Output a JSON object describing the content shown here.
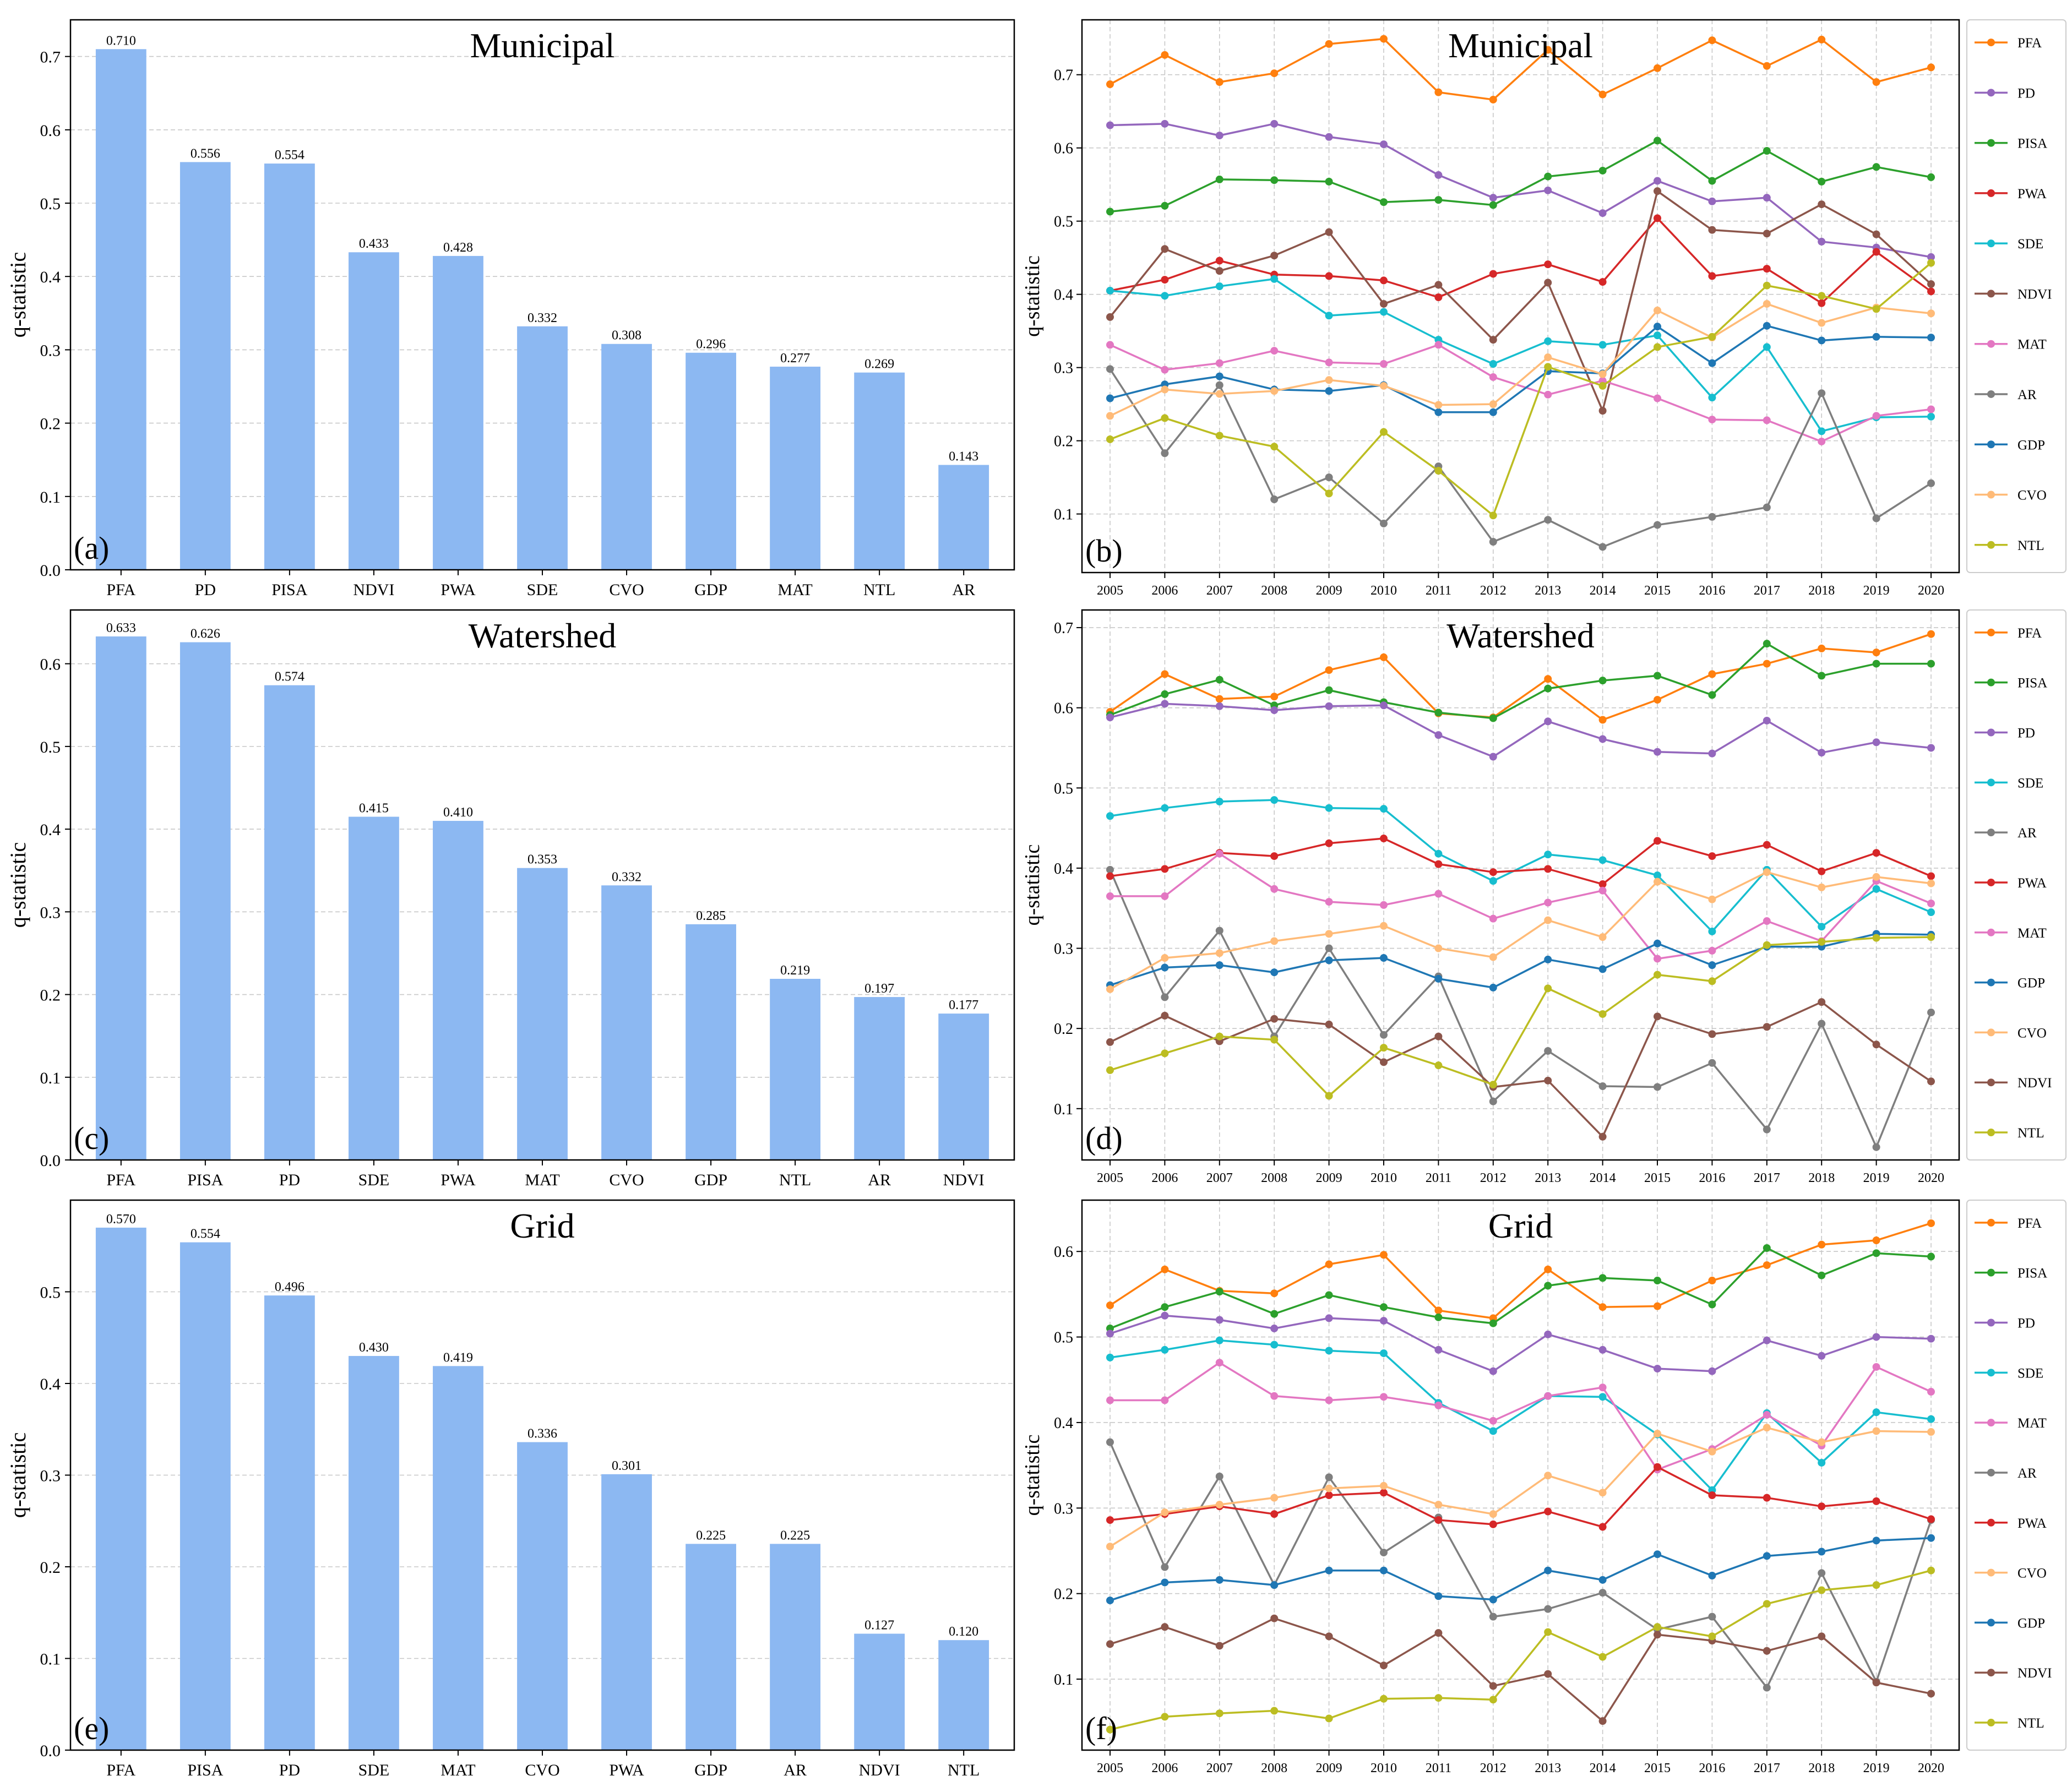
{
  "years": [
    "2005",
    "2006",
    "2007",
    "2008",
    "2009",
    "2010",
    "2011",
    "2012",
    "2013",
    "2014",
    "2015",
    "2016",
    "2017",
    "2018",
    "2019",
    "2020"
  ],
  "colors": {
    "bar": "#8cb8f2",
    "PFA": "#ff7f0e",
    "PD": "#9467bd",
    "PISA": "#2ca02c",
    "PWA": "#d62728",
    "SDE": "#17becf",
    "NDVI": "#8c564b",
    "MAT": "#e377c2",
    "AR": "#7f7f7f",
    "GDP": "#1f77b4",
    "CVO": "#ffbb78",
    "NTL": "#bcbd22"
  },
  "chart_data": [
    {
      "id": "a",
      "type": "bar",
      "title": "Municipal",
      "panel_label": "(a)",
      "ylabel": "q-statistic",
      "ylim": [
        0,
        0.75
      ],
      "yticks": [
        "0.0",
        "0.1",
        "0.2",
        "0.3",
        "0.4",
        "0.5",
        "0.6",
        "0.7"
      ],
      "categories": [
        "PFA",
        "PD",
        "PISA",
        "NDVI",
        "PWA",
        "SDE",
        "CVO",
        "GDP",
        "MAT",
        "NTL",
        "AR"
      ],
      "values": [
        0.71,
        0.556,
        0.554,
        0.433,
        0.428,
        0.332,
        0.308,
        0.296,
        0.277,
        0.269,
        0.143
      ],
      "labels": [
        "0.710",
        "0.556",
        "0.554",
        "0.433",
        "0.428",
        "0.332",
        "0.308",
        "0.296",
        "0.277",
        "0.269",
        "0.143"
      ]
    },
    {
      "id": "b",
      "type": "line",
      "title": "Municipal",
      "panel_label": "(b)",
      "ylabel": "q-statistic",
      "ylim": [
        0.02,
        0.775
      ],
      "yticks": [
        "0.1",
        "0.2",
        "0.3",
        "0.4",
        "0.5",
        "0.6",
        "0.7"
      ],
      "legend": "right",
      "series": [
        {
          "name": "PFA",
          "values": [
            0.687,
            0.727,
            0.69,
            0.702,
            0.742,
            0.749,
            0.676,
            0.666,
            0.734,
            0.673,
            0.709,
            0.747,
            0.712,
            0.748,
            0.69,
            0.71
          ]
        },
        {
          "name": "PD",
          "values": [
            0.631,
            0.633,
            0.617,
            0.633,
            0.615,
            0.605,
            0.563,
            0.532,
            0.542,
            0.511,
            0.555,
            0.527,
            0.532,
            0.472,
            0.464,
            0.451
          ]
        },
        {
          "name": "PISA",
          "values": [
            0.513,
            0.521,
            0.557,
            0.556,
            0.554,
            0.526,
            0.529,
            0.522,
            0.561,
            0.569,
            0.61,
            0.555,
            0.596,
            0.554,
            0.574,
            0.56
          ]
        },
        {
          "name": "PWA",
          "values": [
            0.405,
            0.42,
            0.446,
            0.427,
            0.425,
            0.419,
            0.396,
            0.428,
            0.441,
            0.417,
            0.504,
            0.425,
            0.435,
            0.388,
            0.458,
            0.404
          ]
        },
        {
          "name": "SDE",
          "values": [
            0.405,
            0.398,
            0.411,
            0.421,
            0.371,
            0.376,
            0.338,
            0.305,
            0.336,
            0.331,
            0.344,
            0.259,
            0.328,
            0.213,
            0.232,
            0.233
          ]
        },
        {
          "name": "NDVI",
          "values": [
            0.369,
            0.462,
            0.432,
            0.453,
            0.485,
            0.387,
            0.413,
            0.338,
            0.416,
            0.241,
            0.541,
            0.488,
            0.483,
            0.523,
            0.482,
            0.414
          ]
        },
        {
          "name": "MAT",
          "values": [
            0.331,
            0.297,
            0.306,
            0.323,
            0.307,
            0.305,
            0.331,
            0.287,
            0.263,
            0.282,
            0.258,
            0.229,
            0.228,
            0.199,
            0.234,
            0.243
          ]
        },
        {
          "name": "AR",
          "values": [
            0.298,
            0.183,
            0.276,
            0.12,
            0.15,
            0.087,
            0.165,
            0.062,
            0.092,
            0.055,
            0.085,
            0.096,
            0.109,
            0.265,
            0.094,
            0.142
          ]
        },
        {
          "name": "GDP",
          "values": [
            0.258,
            0.277,
            0.288,
            0.27,
            0.268,
            0.276,
            0.239,
            0.239,
            0.295,
            0.292,
            0.356,
            0.306,
            0.357,
            0.337,
            0.342,
            0.341
          ]
        },
        {
          "name": "CVO",
          "values": [
            0.234,
            0.27,
            0.264,
            0.268,
            0.283,
            0.275,
            0.249,
            0.25,
            0.314,
            0.291,
            0.378,
            0.341,
            0.387,
            0.361,
            0.382,
            0.374
          ]
        },
        {
          "name": "NTL",
          "values": [
            0.202,
            0.231,
            0.207,
            0.192,
            0.128,
            0.212,
            0.159,
            0.098,
            0.301,
            0.275,
            0.328,
            0.342,
            0.412,
            0.398,
            0.38,
            0.443
          ]
        }
      ]
    },
    {
      "id": "c",
      "type": "bar",
      "title": "Watershed",
      "panel_label": "(c)",
      "ylabel": "q-statistic",
      "ylim": [
        0,
        0.665
      ],
      "yticks": [
        "0.0",
        "0.1",
        "0.2",
        "0.3",
        "0.4",
        "0.5",
        "0.6"
      ],
      "categories": [
        "PFA",
        "PISA",
        "PD",
        "SDE",
        "PWA",
        "MAT",
        "CVO",
        "GDP",
        "NTL",
        "AR",
        "NDVI"
      ],
      "values": [
        0.633,
        0.626,
        0.574,
        0.415,
        0.41,
        0.353,
        0.332,
        0.285,
        0.219,
        0.197,
        0.177
      ],
      "labels": [
        "0.633",
        "0.626",
        "0.574",
        "0.415",
        "0.410",
        "0.353",
        "0.332",
        "0.285",
        "0.219",
        "0.197",
        "0.177"
      ]
    },
    {
      "id": "d",
      "type": "line",
      "title": "Watershed",
      "panel_label": "(d)",
      "ylabel": "q-statistic",
      "ylim": [
        0.036,
        0.722
      ],
      "yticks": [
        "0.1",
        "0.2",
        "0.3",
        "0.4",
        "0.5",
        "0.6",
        "0.7"
      ],
      "legend": "right",
      "series": [
        {
          "name": "PFA",
          "values": [
            0.595,
            0.642,
            0.611,
            0.614,
            0.647,
            0.663,
            0.593,
            0.588,
            0.636,
            0.585,
            0.61,
            0.642,
            0.655,
            0.674,
            0.669,
            0.692
          ]
        },
        {
          "name": "PISA",
          "values": [
            0.591,
            0.617,
            0.635,
            0.603,
            0.622,
            0.607,
            0.594,
            0.587,
            0.624,
            0.634,
            0.64,
            0.616,
            0.68,
            0.64,
            0.655,
            0.655
          ]
        },
        {
          "name": "PD",
          "values": [
            0.588,
            0.605,
            0.602,
            0.597,
            0.602,
            0.603,
            0.566,
            0.539,
            0.583,
            0.561,
            0.545,
            0.543,
            0.584,
            0.544,
            0.557,
            0.55
          ]
        },
        {
          "name": "SDE",
          "values": [
            0.465,
            0.475,
            0.483,
            0.485,
            0.475,
            0.474,
            0.418,
            0.384,
            0.417,
            0.41,
            0.391,
            0.321,
            0.398,
            0.327,
            0.374,
            0.345
          ]
        },
        {
          "name": "AR",
          "values": [
            0.398,
            0.239,
            0.322,
            0.19,
            0.3,
            0.192,
            0.265,
            0.109,
            0.172,
            0.128,
            0.127,
            0.157,
            0.074,
            0.206,
            0.052,
            0.22
          ]
        },
        {
          "name": "PWA",
          "values": [
            0.39,
            0.399,
            0.419,
            0.415,
            0.431,
            0.437,
            0.405,
            0.395,
            0.399,
            0.38,
            0.434,
            0.415,
            0.429,
            0.396,
            0.419,
            0.39
          ]
        },
        {
          "name": "MAT",
          "values": [
            0.365,
            0.365,
            0.418,
            0.374,
            0.358,
            0.354,
            0.368,
            0.337,
            0.357,
            0.372,
            0.287,
            0.297,
            0.334,
            0.309,
            0.384,
            0.356
          ]
        },
        {
          "name": "GDP",
          "values": [
            0.254,
            0.276,
            0.279,
            0.27,
            0.285,
            0.288,
            0.262,
            0.251,
            0.286,
            0.274,
            0.306,
            0.279,
            0.302,
            0.302,
            0.318,
            0.317
          ]
        },
        {
          "name": "CVO",
          "values": [
            0.249,
            0.288,
            0.294,
            0.309,
            0.318,
            0.328,
            0.3,
            0.289,
            0.335,
            0.314,
            0.383,
            0.361,
            0.395,
            0.376,
            0.389,
            0.381
          ]
        },
        {
          "name": "NDVI",
          "values": [
            0.183,
            0.216,
            0.184,
            0.212,
            0.205,
            0.158,
            0.19,
            0.127,
            0.135,
            0.065,
            0.215,
            0.193,
            0.202,
            0.233,
            0.18,
            0.134
          ]
        },
        {
          "name": "NTL",
          "values": [
            0.148,
            0.169,
            0.19,
            0.186,
            0.116,
            0.176,
            0.154,
            0.13,
            0.25,
            0.218,
            0.267,
            0.259,
            0.304,
            0.308,
            0.313,
            0.314
          ]
        }
      ]
    },
    {
      "id": "e",
      "type": "bar",
      "title": "Grid",
      "panel_label": "(e)",
      "ylabel": "q-statistic",
      "ylim": [
        0,
        0.6
      ],
      "yticks": [
        "0.0",
        "0.1",
        "0.2",
        "0.3",
        "0.4",
        "0.5"
      ],
      "categories": [
        "PFA",
        "PISA",
        "PD",
        "SDE",
        "MAT",
        "CVO",
        "PWA",
        "GDP",
        "AR",
        "NDVI",
        "NTL"
      ],
      "values": [
        0.57,
        0.554,
        0.496,
        0.43,
        0.419,
        0.336,
        0.301,
        0.225,
        0.225,
        0.127,
        0.12
      ],
      "labels": [
        "0.570",
        "0.554",
        "0.496",
        "0.430",
        "0.419",
        "0.336",
        "0.301",
        "0.225",
        "0.225",
        "0.127",
        "0.120"
      ]
    },
    {
      "id": "f",
      "type": "line",
      "title": "Grid",
      "panel_label": "(f)",
      "ylabel": "q-statistic",
      "ylim": [
        0.017,
        0.66
      ],
      "yticks": [
        "0.1",
        "0.2",
        "0.3",
        "0.4",
        "0.5",
        "0.6"
      ],
      "legend": "right",
      "series": [
        {
          "name": "PFA",
          "values": [
            0.537,
            0.579,
            0.554,
            0.551,
            0.585,
            0.596,
            0.531,
            0.522,
            0.579,
            0.535,
            0.536,
            0.566,
            0.584,
            0.608,
            0.613,
            0.633
          ]
        },
        {
          "name": "PISA",
          "values": [
            0.51,
            0.535,
            0.553,
            0.527,
            0.549,
            0.535,
            0.523,
            0.516,
            0.56,
            0.569,
            0.566,
            0.538,
            0.604,
            0.572,
            0.598,
            0.594
          ]
        },
        {
          "name": "PD",
          "values": [
            0.504,
            0.525,
            0.52,
            0.51,
            0.522,
            0.519,
            0.485,
            0.46,
            0.503,
            0.485,
            0.463,
            0.46,
            0.496,
            0.478,
            0.5,
            0.498
          ]
        },
        {
          "name": "SDE",
          "values": [
            0.476,
            0.485,
            0.496,
            0.491,
            0.484,
            0.481,
            0.423,
            0.39,
            0.431,
            0.43,
            0.386,
            0.321,
            0.411,
            0.353,
            0.412,
            0.404
          ]
        },
        {
          "name": "MAT",
          "values": [
            0.426,
            0.426,
            0.47,
            0.431,
            0.426,
            0.43,
            0.42,
            0.402,
            0.431,
            0.441,
            0.345,
            0.369,
            0.409,
            0.373,
            0.465,
            0.436
          ]
        },
        {
          "name": "AR",
          "values": [
            0.377,
            0.231,
            0.337,
            0.21,
            0.336,
            0.248,
            0.289,
            0.173,
            0.182,
            0.201,
            0.158,
            0.173,
            0.09,
            0.224,
            0.097,
            0.286
          ]
        },
        {
          "name": "PWA",
          "values": [
            0.286,
            0.293,
            0.302,
            0.293,
            0.315,
            0.318,
            0.286,
            0.281,
            0.296,
            0.278,
            0.348,
            0.315,
            0.312,
            0.302,
            0.308,
            0.287
          ]
        },
        {
          "name": "CVO",
          "values": [
            0.255,
            0.295,
            0.304,
            0.312,
            0.323,
            0.326,
            0.304,
            0.293,
            0.338,
            0.318,
            0.387,
            0.366,
            0.394,
            0.377,
            0.39,
            0.389
          ]
        },
        {
          "name": "GDP",
          "values": [
            0.192,
            0.213,
            0.216,
            0.21,
            0.227,
            0.227,
            0.197,
            0.193,
            0.227,
            0.216,
            0.246,
            0.221,
            0.244,
            0.249,
            0.262,
            0.265
          ]
        },
        {
          "name": "NDVI",
          "values": [
            0.141,
            0.161,
            0.139,
            0.171,
            0.15,
            0.116,
            0.154,
            0.092,
            0.106,
            0.051,
            0.152,
            0.145,
            0.133,
            0.15,
            0.096,
            0.083
          ]
        },
        {
          "name": "NTL",
          "values": [
            0.041,
            0.056,
            0.06,
            0.063,
            0.054,
            0.077,
            0.078,
            0.076,
            0.155,
            0.126,
            0.161,
            0.15,
            0.188,
            0.204,
            0.21,
            0.227
          ]
        }
      ]
    }
  ]
}
